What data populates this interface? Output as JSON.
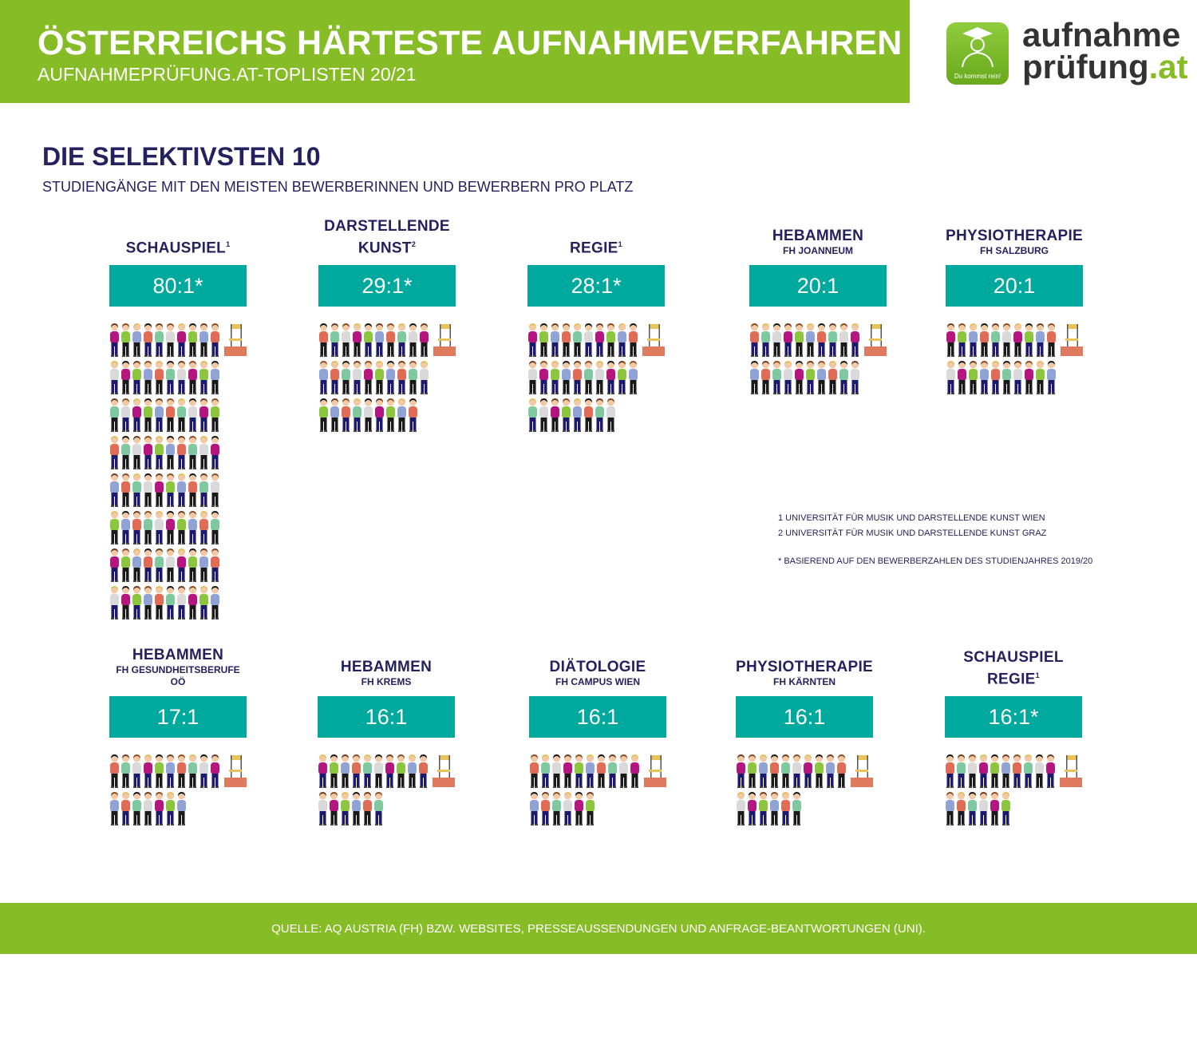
{
  "header": {
    "title": "ÖSTERREICHS HÄRTESTE AUFNAHMEVERFAHREN",
    "subtitle": "AUFNAHMEPRÜFUNG.AT-TOPLISTEN 20/21"
  },
  "logo": {
    "line1": "aufnahme",
    "line2a": "prüfung",
    "line2b": ".at",
    "badge": "Du kommst rein!"
  },
  "section": {
    "title": "DIE SELEKTIVSTEN 10",
    "subtitle": "STUDIENGÄNGE MIT DEN MEISTEN BEWERBERINNEN UND BEWERBERN PRO PLATZ"
  },
  "chart_data": {
    "type": "pictogram",
    "title": "DIE SELEKTIVSTEN 10",
    "unit": "applicants per place",
    "items": [
      {
        "lines": [
          "SCHAUSPIEL"
        ],
        "sup": "1",
        "sub": "",
        "ratio": "80:1*",
        "value": 80
      },
      {
        "lines": [
          "DARSTELLENDE",
          "KUNST"
        ],
        "sup": "2",
        "sub": "",
        "ratio": "29:1*",
        "value": 29
      },
      {
        "lines": [
          "REGIE"
        ],
        "sup": "1",
        "sub": "",
        "ratio": "28:1*",
        "value": 28
      },
      {
        "lines": [
          "HEBAMMEN"
        ],
        "sup": "",
        "sub": "FH JOANNEUM",
        "ratio": "20:1",
        "value": 20
      },
      {
        "lines": [
          "PHYSIOTHERAPIE"
        ],
        "sup": "",
        "sub": "FH SALZBURG",
        "ratio": "20:1",
        "value": 20
      },
      {
        "lines": [
          "HEBAMMEN"
        ],
        "sup": "",
        "sub": "FH GESUNDHEITSBERUFE OÖ",
        "ratio": "17:1",
        "value": 17
      },
      {
        "lines": [
          "HEBAMMEN"
        ],
        "sup": "",
        "sub": "FH KREMS",
        "ratio": "16:1",
        "value": 16
      },
      {
        "lines": [
          "DIÄTOLOGIE"
        ],
        "sup": "",
        "sub": "FH CAMPUS WIEN",
        "ratio": "16:1",
        "value": 16
      },
      {
        "lines": [
          "PHYSIOTHERAPIE"
        ],
        "sup": "",
        "sub": "FH KÄRNTEN",
        "ratio": "16:1",
        "value": 16
      },
      {
        "lines": [
          "SCHAUSPIEL",
          "REGIE"
        ],
        "sup": "1",
        "sub": "",
        "ratio": "16:1*",
        "value": 16
      }
    ]
  },
  "notes": {
    "n1": "1 UNIVERSITÄT FÜR MUSIK UND DARSTELLENDE KUNST WIEN",
    "n2": "2 UNIVERSITÄT FÜR MUSIK UND DARSTELLENDE KUNST GRAZ",
    "star": "* BASIEREND AUF DEN BEWERBERZAHLEN DES STUDIENJAHRES 2019/20"
  },
  "footer": {
    "source": "QUELLE: AQ AUSTRIA (FH) BZW. WEBSITES, PRESSEAUSSENDUNGEN UND ANFRAGE-BEANTWORTUNGEN (UNI)."
  },
  "colors": {
    "green": "#86bc25",
    "teal": "#00a99d",
    "navy": "#23225e",
    "shirts": [
      "#b5157f",
      "#8cc63f",
      "#8fa3d4",
      "#e06c55",
      "#7fc9a0",
      "#d9d9d9"
    ]
  }
}
